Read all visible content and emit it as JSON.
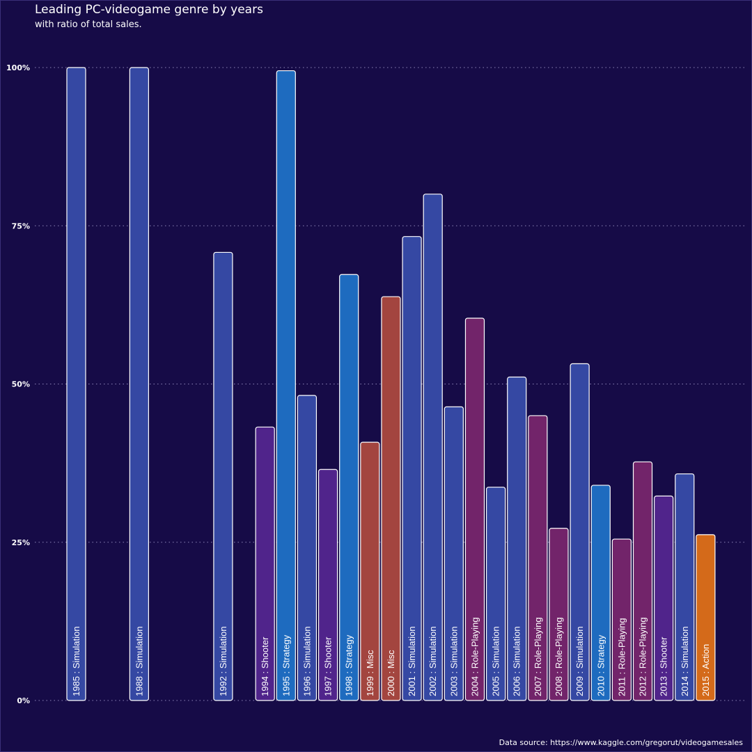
{
  "chart_data": {
    "type": "bar",
    "title": "Leading PC-videogame genre by years",
    "subtitle": "with ratio of total sales.",
    "caption": "Data source: https://www.kaggle.com/gregorut/videogamesales",
    "xlabel": "",
    "ylabel": "",
    "ylim": [
      0,
      100
    ],
    "y_ticks": [
      "0%",
      "25%",
      "50%",
      "75%",
      "100%"
    ],
    "y_tick_values": [
      0,
      25,
      50,
      75,
      100
    ],
    "grid": "horizontal dotted",
    "x_range": [
      1985,
      2015
    ],
    "genre_colors": {
      "Simulation": "#3548a3",
      "Strategy": "#1e6bbf",
      "Shooter": "#50248b",
      "Misc": "#a3453f",
      "Role-Playing": "#72246a",
      "Action": "#d46a1a"
    },
    "bars": [
      {
        "year": 1985,
        "genre": "Simulation",
        "value": 100.0,
        "label": "1985 : Simulation"
      },
      {
        "year": 1988,
        "genre": "Simulation",
        "value": 100.0,
        "label": "1988 : Simulation"
      },
      {
        "year": 1992,
        "genre": "Simulation",
        "value": 70.8,
        "label": "1992 : Simulation"
      },
      {
        "year": 1994,
        "genre": "Shooter",
        "value": 43.2,
        "label": "1994 : Shooter"
      },
      {
        "year": 1995,
        "genre": "Strategy",
        "value": 99.5,
        "label": "1995 : Strategy"
      },
      {
        "year": 1996,
        "genre": "Simulation",
        "value": 48.2,
        "label": "1996 : Simulation"
      },
      {
        "year": 1997,
        "genre": "Shooter",
        "value": 36.5,
        "label": "1997 : Shooter"
      },
      {
        "year": 1998,
        "genre": "Strategy",
        "value": 67.3,
        "label": "1998 : Strategy"
      },
      {
        "year": 1999,
        "genre": "Misc",
        "value": 40.8,
        "label": "1999 : Misc"
      },
      {
        "year": 2000,
        "genre": "Misc",
        "value": 63.8,
        "label": "2000 : Misc"
      },
      {
        "year": 2001,
        "genre": "Simulation",
        "value": 73.3,
        "label": "2001 : Simulation"
      },
      {
        "year": 2002,
        "genre": "Simulation",
        "value": 80.0,
        "label": "2002 : Simulation"
      },
      {
        "year": 2003,
        "genre": "Simulation",
        "value": 46.4,
        "label": "2003 : Simulation"
      },
      {
        "year": 2004,
        "genre": "Role-Playing",
        "value": 60.4,
        "label": "2004 : Role-Playing"
      },
      {
        "year": 2005,
        "genre": "Simulation",
        "value": 33.7,
        "label": "2005 : Simulation"
      },
      {
        "year": 2006,
        "genre": "Simulation",
        "value": 51.1,
        "label": "2006 : Simulation"
      },
      {
        "year": 2007,
        "genre": "Role-Playing",
        "value": 45.0,
        "label": "2007 : Role-Playing"
      },
      {
        "year": 2008,
        "genre": "Role-Playing",
        "value": 27.2,
        "label": "2008 : Role-Playing"
      },
      {
        "year": 2009,
        "genre": "Simulation",
        "value": 53.2,
        "label": "2009 : Simulation"
      },
      {
        "year": 2010,
        "genre": "Strategy",
        "value": 34.0,
        "label": "2010 : Strategy"
      },
      {
        "year": 2011,
        "genre": "Role-Playing",
        "value": 25.5,
        "label": "2011 : Role-Playing"
      },
      {
        "year": 2012,
        "genre": "Role-Playing",
        "value": 37.7,
        "label": "2012 : Role-Playing"
      },
      {
        "year": 2013,
        "genre": "Shooter",
        "value": 32.3,
        "label": "2013 : Shooter"
      },
      {
        "year": 2014,
        "genre": "Simulation",
        "value": 35.8,
        "label": "2014 : Simulation"
      },
      {
        "year": 2015,
        "genre": "Action",
        "value": 26.2,
        "label": "2015 : Action"
      }
    ]
  }
}
